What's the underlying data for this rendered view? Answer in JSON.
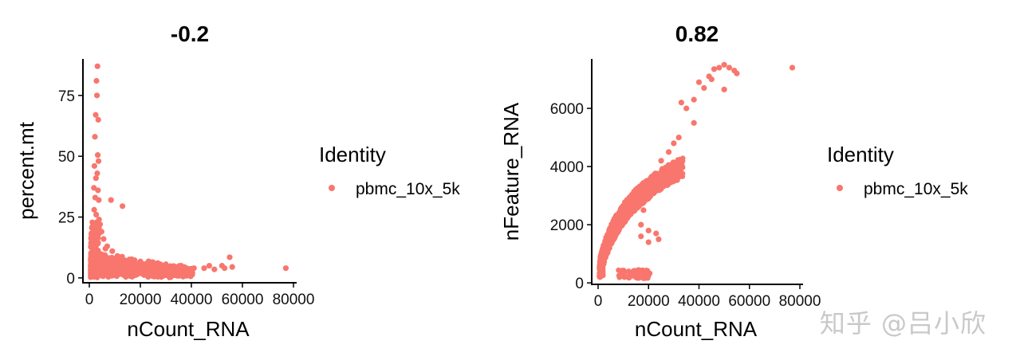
{
  "chart_data": [
    {
      "type": "scatter",
      "title": "-0.2",
      "xlabel": "nCount_RNA",
      "ylabel": "percent.mt",
      "xlim": [
        0,
        80000
      ],
      "ylim": [
        -2,
        90
      ],
      "xticks": [
        0,
        20000,
        40000,
        60000,
        80000
      ],
      "yticks": [
        0,
        25,
        50,
        75
      ],
      "xtick_labels": [
        "0",
        "20000",
        "40000",
        "60000",
        "80000"
      ],
      "ytick_labels": [
        "0",
        "25",
        "50",
        "75"
      ],
      "legend": {
        "title": "Identity",
        "entries": [
          "pbmc_10x_5k"
        ],
        "placement": "right"
      },
      "point_color": "#F8766D",
      "grid": false,
      "series": [
        {
          "name": "pbmc_10x_5k",
          "points": [
            [
              3200,
              87
            ],
            [
              2800,
              81
            ],
            [
              3000,
              75
            ],
            [
              2500,
              67
            ],
            [
              3500,
              65
            ],
            [
              2200,
              58
            ],
            [
              3300,
              50.5
            ],
            [
              3600,
              48
            ],
            [
              2000,
              46
            ],
            [
              3100,
              43
            ],
            [
              2600,
              41
            ],
            [
              1800,
              37
            ],
            [
              3400,
              36
            ],
            [
              2300,
              33
            ],
            [
              3700,
              32
            ],
            [
              1900,
              28
            ],
            [
              2700,
              26
            ],
            [
              3800,
              24
            ],
            [
              4200,
              22
            ],
            [
              2100,
              21
            ],
            [
              8500,
              32
            ],
            [
              13000,
              29.5
            ],
            [
              4800,
              19
            ],
            [
              5600,
              16
            ],
            [
              7000,
              13
            ],
            [
              9000,
              11
            ],
            [
              6300,
              12
            ],
            [
              11000,
              9
            ],
            [
              15000,
              7
            ],
            [
              19000,
              5
            ],
            [
              24000,
              4.5
            ],
            [
              30000,
              3
            ],
            [
              36000,
              5
            ],
            [
              41000,
              4
            ],
            [
              45000,
              4
            ],
            [
              47000,
              5
            ],
            [
              49000,
              3.5
            ],
            [
              52000,
              5
            ],
            [
              53000,
              4
            ],
            [
              55000,
              8.5
            ],
            [
              56000,
              4.5
            ],
            [
              77000,
              4
            ]
          ]
        }
      ]
    },
    {
      "type": "scatter",
      "title": "0.82",
      "xlabel": "nCount_RNA",
      "ylabel": "nFeature_RNA",
      "xlim": [
        0,
        80000
      ],
      "ylim": [
        -50,
        7700
      ],
      "xticks": [
        0,
        20000,
        40000,
        60000,
        80000
      ],
      "yticks": [
        0,
        2000,
        4000,
        6000
      ],
      "xtick_labels": [
        "0",
        "20000",
        "40000",
        "60000",
        "80000"
      ],
      "ytick_labels": [
        "0",
        "2000",
        "4000",
        "6000"
      ],
      "legend": {
        "title": "Identity",
        "entries": [
          "pbmc_10x_5k"
        ],
        "placement": "right"
      },
      "point_color": "#F8766D",
      "grid": false,
      "series": [
        {
          "name": "pbmc_10x_5k",
          "points": [
            [
              33000,
              6200
            ],
            [
              35000,
              6000
            ],
            [
              38000,
              6300
            ],
            [
              40000,
              6900
            ],
            [
              42000,
              6700
            ],
            [
              44000,
              7100
            ],
            [
              46000,
              7350
            ],
            [
              48000,
              7400
            ],
            [
              50000,
              7500
            ],
            [
              52000,
              7400
            ],
            [
              54000,
              7300
            ],
            [
              55000,
              7200
            ],
            [
              45000,
              7000
            ],
            [
              50000,
              6650
            ],
            [
              38000,
              5500
            ],
            [
              32000,
              5000
            ],
            [
              30000,
              4800
            ],
            [
              28000,
              4500
            ],
            [
              25000,
              4200
            ],
            [
              21000,
              3600
            ],
            [
              22000,
              3200
            ],
            [
              18000,
              2500
            ],
            [
              17000,
              2000
            ],
            [
              20000,
              1800
            ],
            [
              17000,
              1600
            ],
            [
              23000,
              1700
            ],
            [
              24000,
              1500
            ],
            [
              20000,
              1400
            ],
            [
              77000,
              7400
            ]
          ]
        }
      ]
    }
  ],
  "watermark": "知乎 @吕小欣"
}
